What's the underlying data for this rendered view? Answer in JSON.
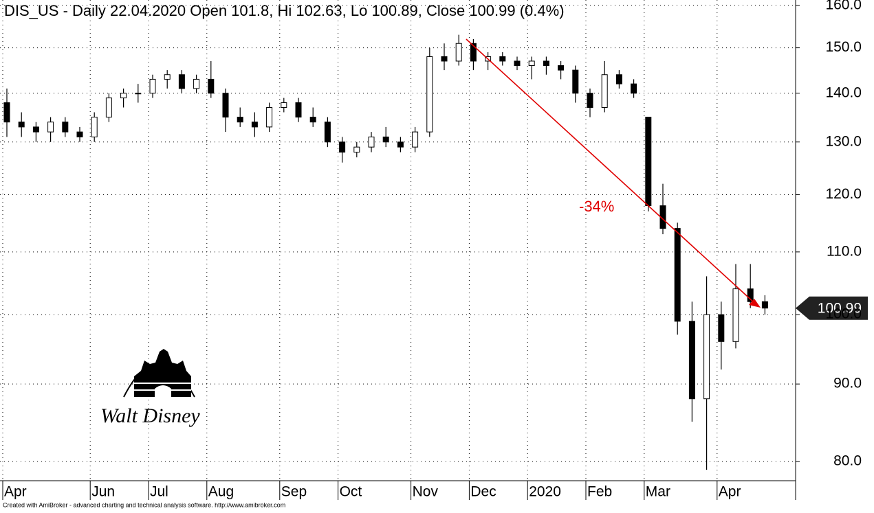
{
  "chart_data": {
    "type": "candlestick",
    "title": "DIS_US - Daily 22.04.2020 Open 101.8, Hi 102.63, Lo 100.89, Close 100.99 (0.4%)",
    "annotation": "-34%",
    "logo_text": "Walt Disney",
    "footer": "Created with AmiBroker - advanced charting and technical analysis software. http://www.amibroker.com",
    "last_price": 100.99,
    "log_scale": true,
    "grid": true,
    "ylim": [
      77.7,
      161.3
    ],
    "yticks": [
      {
        "value": 80,
        "label": "80.0"
      },
      {
        "value": 90,
        "label": "90.0"
      },
      {
        "value": 100,
        "label": "100.0"
      },
      {
        "value": 110,
        "label": "110.0"
      },
      {
        "value": 120,
        "label": "120.0"
      },
      {
        "value": 130,
        "label": "130.0"
      },
      {
        "value": 140,
        "label": "140.0"
      },
      {
        "value": 150,
        "label": "150.0"
      },
      {
        "value": 160,
        "label": "160.0"
      }
    ],
    "categories": [
      "Apr",
      null,
      null,
      null,
      null,
      null,
      "Jun",
      null,
      null,
      null,
      "Jul",
      null,
      null,
      null,
      "Aug",
      null,
      null,
      null,
      null,
      "Sep",
      null,
      null,
      null,
      "Oct",
      null,
      null,
      null,
      null,
      "Nov",
      null,
      null,
      null,
      "Dec",
      null,
      null,
      null,
      "2020",
      null,
      null,
      null,
      "Feb",
      null,
      null,
      null,
      "Mar",
      null,
      null,
      null,
      null,
      "Apr",
      null,
      null,
      null
    ],
    "open": [
      138,
      134,
      133,
      132,
      134,
      132,
      131,
      135,
      139,
      140,
      140,
      143,
      144,
      141,
      143,
      140,
      135,
      134,
      133,
      137,
      138,
      135,
      134,
      130,
      128,
      129,
      131,
      130,
      129,
      132,
      148,
      147,
      151,
      147,
      148,
      147,
      146,
      147,
      146,
      145,
      140,
      137,
      144,
      142,
      135,
      118,
      114,
      99,
      88,
      100,
      96,
      104,
      102
    ],
    "high": [
      141,
      136,
      134,
      135,
      135,
      133,
      136,
      140,
      141,
      142,
      144,
      145,
      145,
      144,
      147,
      141,
      137,
      136,
      138,
      139,
      139,
      137,
      135,
      131,
      130,
      132,
      133,
      131,
      133,
      150,
      151,
      153,
      152,
      149,
      149,
      148,
      148,
      148,
      147,
      146,
      141,
      147,
      145,
      143,
      135,
      122,
      115,
      102,
      106,
      102,
      108,
      108,
      103
    ],
    "low": [
      131,
      131,
      130,
      130,
      131,
      130,
      130,
      134,
      137,
      138,
      139,
      141,
      140,
      140,
      139,
      132,
      133,
      131,
      132,
      136,
      134,
      133,
      129,
      126,
      127,
      128,
      129,
      128,
      128,
      131,
      145,
      146,
      145,
      145,
      146,
      145,
      143,
      144,
      143,
      138,
      135,
      136,
      141,
      139,
      117,
      113,
      97,
      85,
      79,
      92,
      95,
      101,
      100
    ],
    "close": [
      134,
      133,
      132,
      134,
      132,
      131,
      135,
      139,
      140,
      140,
      143,
      144,
      141,
      143,
      140,
      135,
      134,
      133,
      137,
      138,
      135,
      134,
      130,
      128,
      129,
      131,
      130,
      129,
      132,
      148,
      147,
      151,
      147,
      148,
      147,
      146,
      147,
      146,
      145,
      140,
      137,
      144,
      142,
      140,
      118,
      114,
      99,
      88,
      100,
      96,
      104,
      102,
      101
    ]
  }
}
